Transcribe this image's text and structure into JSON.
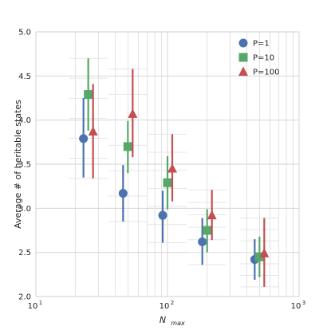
{
  "chart_data": {
    "type": "scatter",
    "title": "",
    "xlabel_base": "N",
    "xlabel_sub": "max",
    "ylabel": "Average # of heritable states",
    "xscale": "log",
    "xlim": [
      10,
      1000
    ],
    "ylim": [
      2.0,
      5.0
    ],
    "x_ticks": [
      {
        "base": "10",
        "exp": "1",
        "value": 10
      },
      {
        "base": "10",
        "exp": "2",
        "value": 100
      },
      {
        "base": "10",
        "exp": "3",
        "value": 1000
      }
    ],
    "y_ticks": [
      "2.0",
      "2.5",
      "3.0",
      "3.5",
      "4.0",
      "4.5",
      "5.0"
    ],
    "grid": true,
    "legend_position": "top-right",
    "series": [
      {
        "name": "P=1",
        "marker": "circle",
        "color": "#4c72b0",
        "points": [
          {
            "x": 25,
            "y": 3.79,
            "ylow": 3.35,
            "yhigh": 4.25
          },
          {
            "x": 50,
            "y": 3.17,
            "ylow": 2.85,
            "yhigh": 3.49
          },
          {
            "x": 100,
            "y": 2.92,
            "ylow": 2.61,
            "yhigh": 3.2
          },
          {
            "x": 200,
            "y": 2.62,
            "ylow": 2.36,
            "yhigh": 2.89
          },
          {
            "x": 500,
            "y": 2.42,
            "ylow": 2.19,
            "yhigh": 2.65
          }
        ]
      },
      {
        "name": "P=10",
        "marker": "square",
        "color": "#55a868",
        "points": [
          {
            "x": 25,
            "y": 4.29,
            "ylow": 3.88,
            "yhigh": 4.7
          },
          {
            "x": 50,
            "y": 3.7,
            "ylow": 3.4,
            "yhigh": 3.99
          },
          {
            "x": 100,
            "y": 3.29,
            "ylow": 2.99,
            "yhigh": 3.59
          },
          {
            "x": 200,
            "y": 2.75,
            "ylow": 2.5,
            "yhigh": 2.99
          },
          {
            "x": 500,
            "y": 2.45,
            "ylow": 2.22,
            "yhigh": 2.68
          }
        ]
      },
      {
        "name": "P=100",
        "marker": "triangle",
        "color": "#c44e52",
        "points": [
          {
            "x": 25,
            "y": 3.87,
            "ylow": 3.34,
            "yhigh": 4.41
          },
          {
            "x": 50,
            "y": 4.07,
            "ylow": 3.58,
            "yhigh": 4.58
          },
          {
            "x": 100,
            "y": 3.45,
            "ylow": 3.08,
            "yhigh": 3.84
          },
          {
            "x": 200,
            "y": 2.92,
            "ylow": 2.64,
            "yhigh": 3.21
          },
          {
            "x": 500,
            "y": 2.49,
            "ylow": 2.11,
            "yhigh": 2.89
          }
        ]
      }
    ]
  }
}
